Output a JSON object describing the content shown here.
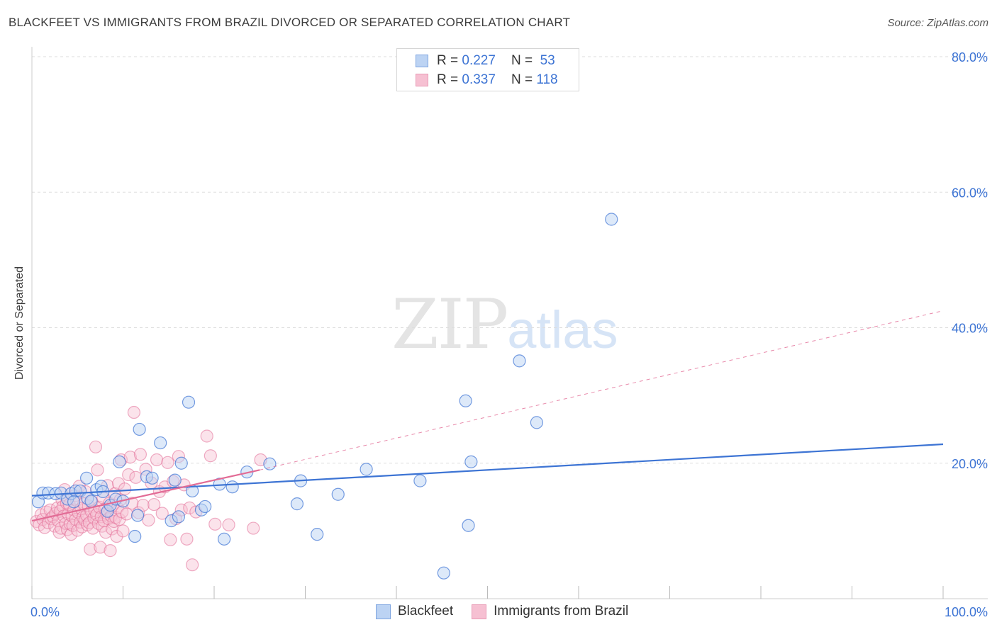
{
  "header": {
    "title": "BLACKFEET VS IMMIGRANTS FROM BRAZIL DIVORCED OR SEPARATED CORRELATION CHART",
    "source": "Source: ZipAtlas.com"
  },
  "watermark": {
    "zip": "ZIP",
    "atlas": "atlas"
  },
  "colors": {
    "blackfeet": "#3d74d4",
    "blackfeet_fill": "#bcd3f3",
    "brazil": "#e26b95",
    "brazil_fill": "#f6c0d2",
    "grid": "#dddddd",
    "tick_label": "#3d74d4"
  },
  "legend": {
    "rows": [
      {
        "r_label": "R =",
        "r_value": "0.227",
        "n_label": "N =",
        "n_value": "53"
      },
      {
        "r_label": "R =",
        "r_value": "0.337",
        "n_label": "N =",
        "n_value": "118"
      }
    ]
  },
  "bottom_legend": {
    "blackfeet": "Blackfeet",
    "brazil": "Immigrants from Brazil"
  },
  "chart_data": {
    "type": "scatter",
    "title": "BLACKFEET VS IMMIGRANTS FROM BRAZIL DIVORCED OR SEPARATED CORRELATION CHART",
    "xlabel": "",
    "ylabel": "Divorced or Separated",
    "xlim": [
      0,
      100
    ],
    "ylim": [
      0,
      80
    ],
    "x_tick_labels": [
      "0.0%",
      "100.0%"
    ],
    "y_ticks": [
      20,
      40,
      60,
      80
    ],
    "y_tick_labels": [
      "20.0%",
      "40.0%",
      "60.0%",
      "80.0%"
    ],
    "x_minor_ticks": [
      0,
      10,
      20,
      30,
      40,
      50,
      60,
      70,
      80,
      90,
      100
    ],
    "grid": true,
    "series": [
      {
        "name": "Blackfeet",
        "r": 0.227,
        "n": 53,
        "trend": {
          "x": [
            0,
            100
          ],
          "y": [
            15.2,
            22.8
          ],
          "style": "solid"
        },
        "points": [
          [
            0.7,
            14.3
          ],
          [
            1.2,
            15.6
          ],
          [
            1.8,
            15.6
          ],
          [
            2.6,
            15.5
          ],
          [
            3.2,
            15.6
          ],
          [
            3.9,
            14.7
          ],
          [
            4.3,
            15.5
          ],
          [
            4.8,
            15.9
          ],
          [
            4.6,
            14.3
          ],
          [
            5.3,
            15.9
          ],
          [
            6.1,
            14.8
          ],
          [
            6.0,
            17.8
          ],
          [
            6.5,
            14.4
          ],
          [
            7.1,
            16.1
          ],
          [
            7.6,
            16.6
          ],
          [
            7.8,
            15.8
          ],
          [
            8.3,
            12.9
          ],
          [
            8.6,
            13.8
          ],
          [
            9.2,
            14.7
          ],
          [
            9.6,
            20.2
          ],
          [
            10.0,
            14.4
          ],
          [
            11.3,
            9.2
          ],
          [
            11.6,
            12.3
          ],
          [
            11.8,
            25.0
          ],
          [
            12.6,
            18.0
          ],
          [
            13.2,
            17.8
          ],
          [
            14.1,
            23.0
          ],
          [
            15.3,
            11.5
          ],
          [
            15.7,
            17.5
          ],
          [
            16.1,
            12.1
          ],
          [
            16.4,
            20.0
          ],
          [
            17.2,
            29.0
          ],
          [
            17.6,
            15.9
          ],
          [
            18.6,
            13.1
          ],
          [
            19.0,
            13.6
          ],
          [
            20.6,
            16.9
          ],
          [
            21.1,
            8.8
          ],
          [
            22.0,
            16.5
          ],
          [
            23.6,
            18.7
          ],
          [
            26.1,
            19.9
          ],
          [
            29.1,
            14.0
          ],
          [
            29.5,
            17.4
          ],
          [
            31.3,
            9.5
          ],
          [
            33.6,
            15.4
          ],
          [
            36.7,
            19.1
          ],
          [
            42.6,
            17.4
          ],
          [
            45.2,
            3.8
          ],
          [
            47.9,
            10.8
          ],
          [
            47.6,
            29.2
          ],
          [
            48.2,
            20.2
          ],
          [
            53.5,
            35.1
          ],
          [
            55.4,
            26.0
          ],
          [
            63.6,
            56.0
          ]
        ]
      },
      {
        "name": "Immigrants from Brazil",
        "r": 0.337,
        "n": 118,
        "trend": {
          "x": [
            0,
            25
          ],
          "y": [
            11.5,
            19.0
          ],
          "style": "solid"
        },
        "trend_extension": {
          "x": [
            25,
            100
          ],
          "y": [
            19.0,
            42.5
          ],
          "style": "dashed"
        },
        "points": [
          [
            0.5,
            11.4
          ],
          [
            0.8,
            10.9
          ],
          [
            1.0,
            12.4
          ],
          [
            1.2,
            11.7
          ],
          [
            1.4,
            10.5
          ],
          [
            1.6,
            12.8
          ],
          [
            1.8,
            11.2
          ],
          [
            2.0,
            13.1
          ],
          [
            2.1,
            11.8
          ],
          [
            2.3,
            12.1
          ],
          [
            2.5,
            10.7
          ],
          [
            2.6,
            12.6
          ],
          [
            2.8,
            13.4
          ],
          [
            2.9,
            11.5
          ],
          [
            3.0,
            9.8
          ],
          [
            3.1,
            12.9
          ],
          [
            3.2,
            10.4
          ],
          [
            3.3,
            14.6
          ],
          [
            3.4,
            13.6
          ],
          [
            3.5,
            12.2
          ],
          [
            3.6,
            16.1
          ],
          [
            3.7,
            11.1
          ],
          [
            3.8,
            14.1
          ],
          [
            3.9,
            10.2
          ],
          [
            4.0,
            12.5
          ],
          [
            4.1,
            13.9
          ],
          [
            4.2,
            11.0
          ],
          [
            4.3,
            9.5
          ],
          [
            4.4,
            12.2
          ],
          [
            4.5,
            10.8
          ],
          [
            4.6,
            13.1
          ],
          [
            4.7,
            15.2
          ],
          [
            4.8,
            11.7
          ],
          [
            4.9,
            14.5
          ],
          [
            5.0,
            10.1
          ],
          [
            5.1,
            12.7
          ],
          [
            5.2,
            16.6
          ],
          [
            5.3,
            11.3
          ],
          [
            5.4,
            13.3
          ],
          [
            5.5,
            10.6
          ],
          [
            5.6,
            12.0
          ],
          [
            5.7,
            14.0
          ],
          [
            5.8,
            11.6
          ],
          [
            5.9,
            15.8
          ],
          [
            6.0,
            12.3
          ],
          [
            6.1,
            10.9
          ],
          [
            6.2,
            13.7
          ],
          [
            6.3,
            11.2
          ],
          [
            6.4,
            7.3
          ],
          [
            6.5,
            12.9
          ],
          [
            6.6,
            14.3
          ],
          [
            6.7,
            10.4
          ],
          [
            6.8,
            11.9
          ],
          [
            6.9,
            13.0
          ],
          [
            7.0,
            22.4
          ],
          [
            7.1,
            12.4
          ],
          [
            7.2,
            19.0
          ],
          [
            7.3,
            11.1
          ],
          [
            7.4,
            13.5
          ],
          [
            7.5,
            7.6
          ],
          [
            7.6,
            12.1
          ],
          [
            7.7,
            10.7
          ],
          [
            7.8,
            14.9
          ],
          [
            7.9,
            11.5
          ],
          [
            8.0,
            13.2
          ],
          [
            8.1,
            9.8
          ],
          [
            8.2,
            12.6
          ],
          [
            8.3,
            16.7
          ],
          [
            8.4,
            11.8
          ],
          [
            8.5,
            14.1
          ],
          [
            8.6,
            7.1
          ],
          [
            8.7,
            12.2
          ],
          [
            8.8,
            10.3
          ],
          [
            8.9,
            13.8
          ],
          [
            9.0,
            11.4
          ],
          [
            9.1,
            15.5
          ],
          [
            9.2,
            12.0
          ],
          [
            9.3,
            9.2
          ],
          [
            9.4,
            13.4
          ],
          [
            9.5,
            17.0
          ],
          [
            9.6,
            11.7
          ],
          [
            9.7,
            14.6
          ],
          [
            9.8,
            20.5
          ],
          [
            9.9,
            12.8
          ],
          [
            10.0,
            10.0
          ],
          [
            10.2,
            16.2
          ],
          [
            10.4,
            12.5
          ],
          [
            10.6,
            18.3
          ],
          [
            10.8,
            20.9
          ],
          [
            11.0,
            14.1
          ],
          [
            11.2,
            27.5
          ],
          [
            11.4,
            17.9
          ],
          [
            11.7,
            12.7
          ],
          [
            11.9,
            21.3
          ],
          [
            12.2,
            13.8
          ],
          [
            12.5,
            19.1
          ],
          [
            12.8,
            11.6
          ],
          [
            13.1,
            17.1
          ],
          [
            13.4,
            13.9
          ],
          [
            13.7,
            20.5
          ],
          [
            14.0,
            15.8
          ],
          [
            14.3,
            12.6
          ],
          [
            14.6,
            16.5
          ],
          [
            14.9,
            20.1
          ],
          [
            15.2,
            8.7
          ],
          [
            15.5,
            17.3
          ],
          [
            15.8,
            11.8
          ],
          [
            16.1,
            21.0
          ],
          [
            16.4,
            13.1
          ],
          [
            16.7,
            16.8
          ],
          [
            17.0,
            8.8
          ],
          [
            17.3,
            13.4
          ],
          [
            17.6,
            5.0
          ],
          [
            18.0,
            12.8
          ],
          [
            19.2,
            24.0
          ],
          [
            19.6,
            21.1
          ],
          [
            20.1,
            11.0
          ],
          [
            21.6,
            10.9
          ],
          [
            24.3,
            10.4
          ],
          [
            25.1,
            20.5
          ]
        ]
      }
    ]
  }
}
